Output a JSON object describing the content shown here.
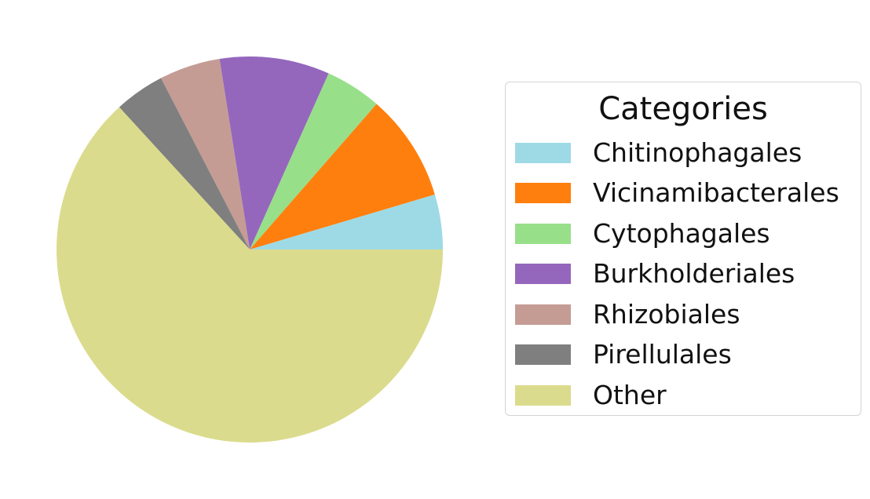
{
  "chart_data": {
    "type": "pie",
    "title": "",
    "legend": {
      "title": "Categories",
      "placement": "right"
    },
    "start_angle_deg": 0,
    "direction": "counterclockwise",
    "slices": [
      {
        "label": "Chitinophagales",
        "value": 4.6,
        "color": "#9edae5"
      },
      {
        "label": "Vicinamibacterales",
        "value": 9.0,
        "color": "#ff7f0e"
      },
      {
        "label": "Cytophagales",
        "value": 4.7,
        "color": "#98df8a"
      },
      {
        "label": "Burkholderiales",
        "value": 9.2,
        "color": "#9467bd"
      },
      {
        "label": "Rhizobiales",
        "value": 5.1,
        "color": "#c49c94"
      },
      {
        "label": "Pirellulales",
        "value": 4.2,
        "color": "#7f7f7f"
      },
      {
        "label": "Other",
        "value": 63.2,
        "color": "#dbdb8d"
      }
    ]
  }
}
